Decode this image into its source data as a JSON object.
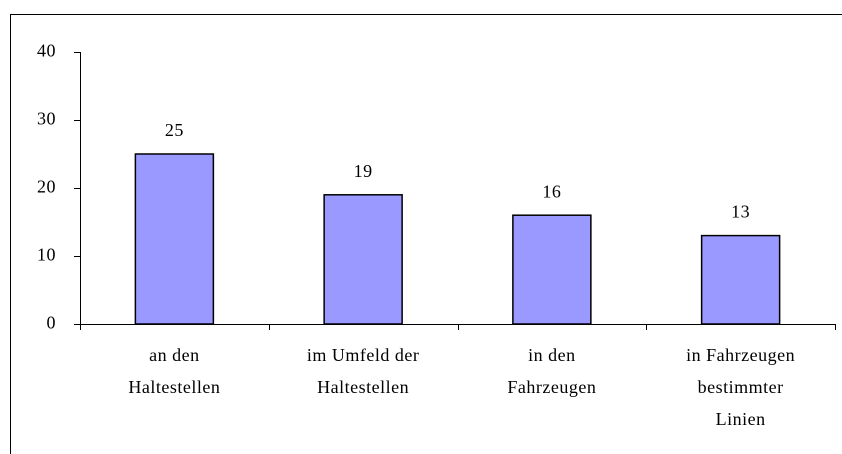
{
  "chart_data": {
    "type": "bar",
    "categories": [
      [
        "an den",
        "Haltestellen"
      ],
      [
        "im Umfeld der",
        "Haltestellen"
      ],
      [
        "in den",
        "Fahrzeugen"
      ],
      [
        "in Fahrzeugen",
        "bestimmter",
        "Linien"
      ]
    ],
    "values": [
      25,
      19,
      16,
      13
    ],
    "color": "#9999ff",
    "ylim": [
      0,
      40
    ],
    "yticks": [
      0,
      10,
      20,
      30,
      40
    ],
    "grid": false
  }
}
